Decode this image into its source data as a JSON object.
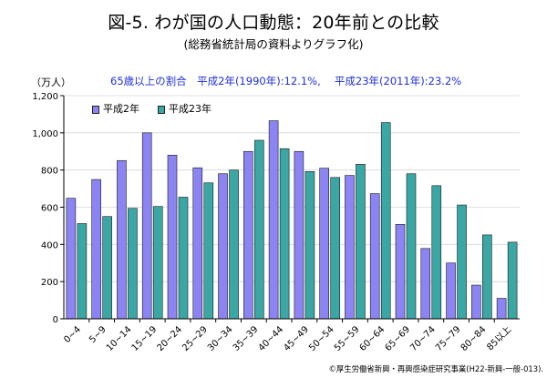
{
  "header": {
    "title": "図-5. わが国の人口動態：20年前との比較",
    "subtitle": "(総務省統計局の資料よりグラフ化)"
  },
  "footer": {
    "credit": "©厚生労働省新興・再興感染症研究事業(H22-新興-一般-013)."
  },
  "colors": {
    "series_1990": "#8b84f2",
    "series_2011": "#3aa7a5",
    "annotation": "#1f2fd8",
    "grid": "#d6d6d6",
    "axis": "#000000"
  },
  "chart_data": {
    "type": "bar",
    "title": "図-5. わが国の人口動態：20年前との比較",
    "subtitle": "(総務省統計局の資料よりグラフ化)",
    "unit_label": "（万人）",
    "annotation": "65歳以上の割合　平成2年(1990年):12.1%,　 平成23年(2011年):23.2%",
    "xlabel": "",
    "ylabel": "（万人）",
    "ylim": [
      0,
      1200
    ],
    "yticks": [
      0,
      200,
      400,
      600,
      800,
      1000,
      1200
    ],
    "ytick_labels": [
      "0",
      "200",
      "400",
      "600",
      "800",
      "1,000",
      "1,200"
    ],
    "grid": true,
    "legend_position": "top-left",
    "categories": [
      "0~4",
      "5~9",
      "10~14",
      "15~19",
      "20~24",
      "25~29",
      "30~34",
      "35~39",
      "40~44",
      "45~49",
      "50~54",
      "55~59",
      "60~64",
      "65~69",
      "70~74",
      "75~79",
      "80~84",
      "85以上"
    ],
    "series": [
      {
        "name": "平成2年",
        "color": "#8b84f2",
        "values": [
          648,
          749,
          851,
          1000,
          880,
          812,
          780,
          900,
          1065,
          900,
          810,
          771,
          673,
          508,
          378,
          300,
          181,
          110
        ]
      },
      {
        "name": "平成23年",
        "color": "#3aa7a5",
        "values": [
          512,
          550,
          594,
          604,
          654,
          731,
          800,
          960,
          915,
          792,
          760,
          831,
          1055,
          780,
          716,
          612,
          451,
          412
        ]
      }
    ]
  }
}
